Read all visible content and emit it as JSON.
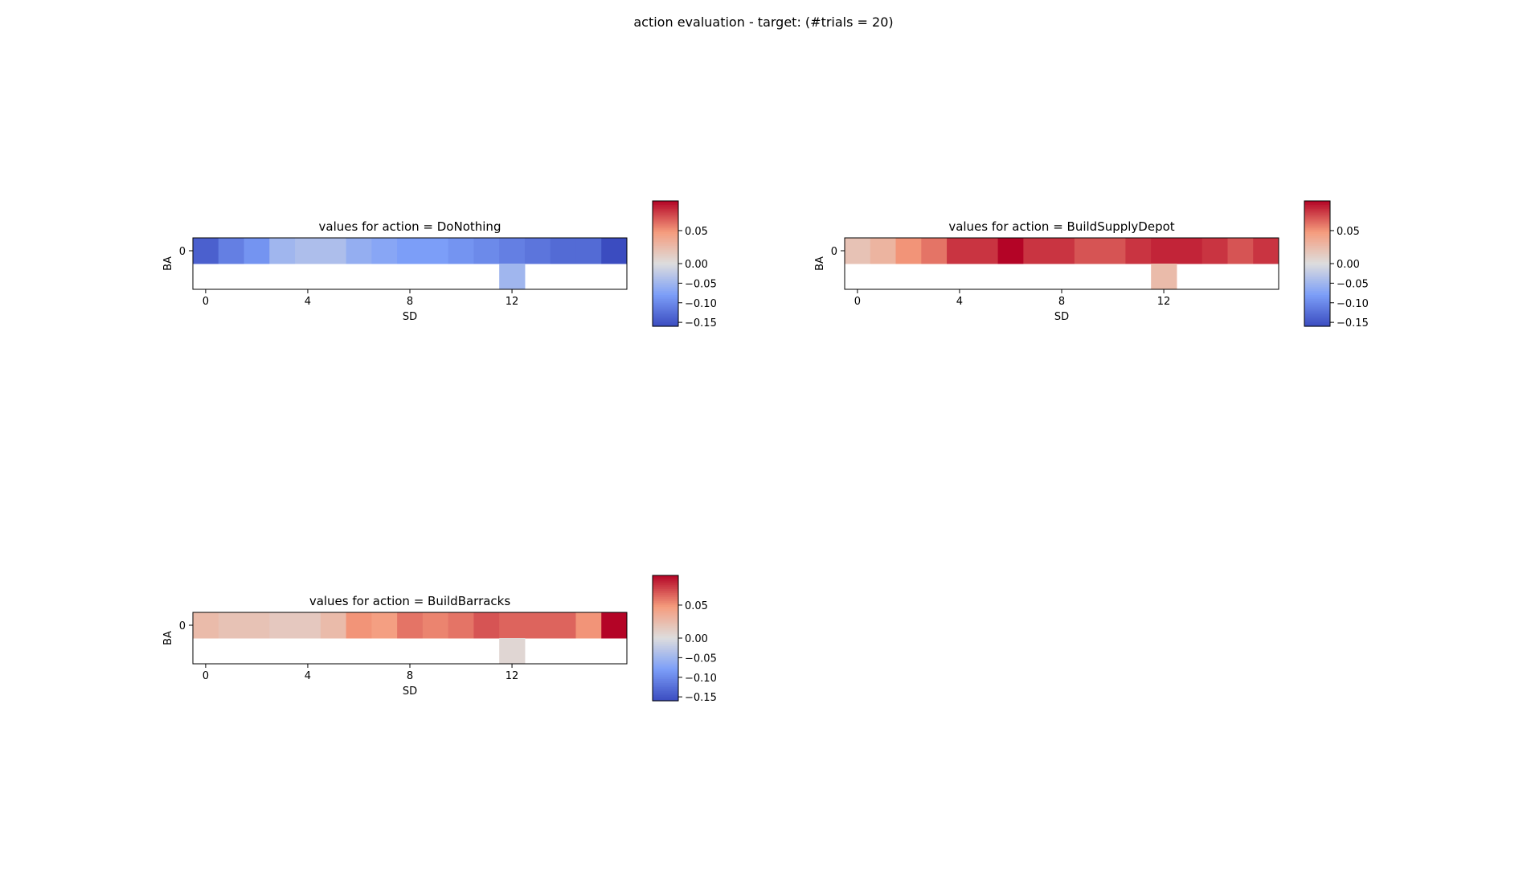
{
  "figure_title": "action evaluation - target: (#trials = 20)",
  "colorbar": {
    "vmin": -0.16,
    "vmax": 0.095,
    "ticks": [
      "0.05",
      "0.00",
      "−0.05",
      "−0.10",
      "−0.15"
    ],
    "tick_values": [
      0.05,
      0.0,
      -0.05,
      -0.1,
      -0.15
    ],
    "colormap": "coolwarm"
  },
  "chart_data": [
    {
      "type": "heatmap",
      "title": "values for action = DoNothing",
      "xlabel": "SD",
      "ylabel": "BA",
      "x_ticks": [
        "0",
        "4",
        "8",
        "12"
      ],
      "x_tick_values": [
        0,
        4,
        8,
        12
      ],
      "y_ticks": [
        "0"
      ],
      "y_tick_values": [
        0
      ],
      "rows": [
        [
          -0.14,
          -0.11,
          -0.09,
          -0.05,
          -0.04,
          -0.04,
          -0.06,
          -0.07,
          -0.08,
          -0.08,
          -0.09,
          -0.1,
          -0.11,
          -0.12,
          -0.13,
          -0.13,
          -0.16
        ],
        [
          null,
          null,
          null,
          null,
          null,
          null,
          null,
          null,
          null,
          null,
          null,
          null,
          -0.05,
          null,
          null,
          null,
          null
        ]
      ]
    },
    {
      "type": "heatmap",
      "title": "values for action = BuildSupplyDepot",
      "xlabel": "SD",
      "ylabel": "BA",
      "x_ticks": [
        "0",
        "4",
        "8",
        "12"
      ],
      "x_tick_values": [
        0,
        4,
        8,
        12
      ],
      "y_ticks": [
        "0"
      ],
      "y_tick_values": [
        0
      ],
      "rows": [
        [
          0.02,
          0.03,
          0.05,
          0.06,
          0.08,
          0.08,
          0.095,
          0.08,
          0.08,
          0.07,
          0.07,
          0.08,
          0.085,
          0.085,
          0.08,
          0.07,
          0.08
        ],
        [
          null,
          null,
          null,
          null,
          null,
          null,
          null,
          null,
          null,
          null,
          null,
          null,
          0.025,
          null,
          null,
          null,
          null
        ]
      ]
    },
    {
      "type": "heatmap",
      "title": "values for action = BuildBarracks",
      "xlabel": "SD",
      "ylabel": "BA",
      "x_ticks": [
        "0",
        "4",
        "8",
        "12"
      ],
      "x_tick_values": [
        0,
        4,
        8,
        12
      ],
      "y_ticks": [
        "0"
      ],
      "y_tick_values": [
        0
      ],
      "rows": [
        [
          0.025,
          0.02,
          0.02,
          0.015,
          0.015,
          0.025,
          0.05,
          0.045,
          0.06,
          0.055,
          0.06,
          0.07,
          0.065,
          0.065,
          0.065,
          0.05,
          0.095
        ],
        [
          null,
          null,
          null,
          null,
          null,
          null,
          null,
          null,
          null,
          null,
          null,
          null,
          0.005,
          null,
          null,
          null,
          null
        ]
      ]
    }
  ]
}
